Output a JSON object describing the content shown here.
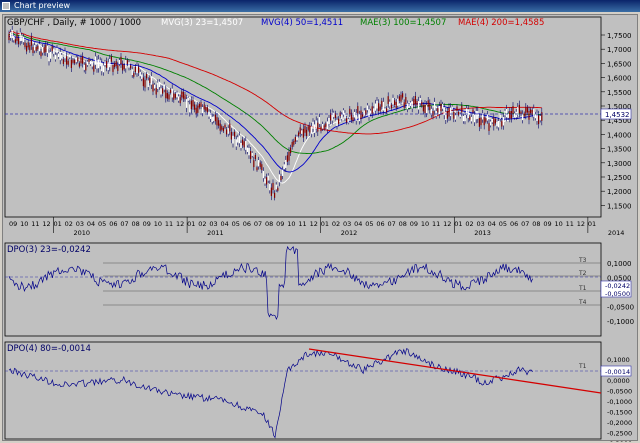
{
  "window": {
    "title": "Chart preview"
  },
  "legend": {
    "symbol": "GBP/CHF , Daily, # 1000 / 1000",
    "ma1": "MVG(3) 23=1,4507",
    "ma2": "MVG(4) 50=1,4511",
    "ma3": "MAE(3) 100=1,4507",
    "ma4": "MAE(4) 200=1,4585"
  },
  "colors": {
    "ma1": "#ffffff",
    "ma2": "#0000cc",
    "ma3": "#008000",
    "ma4": "#d40000",
    "price": "#000066",
    "trendline": "#d40000"
  },
  "price_axis": [
    "1,7500",
    "1,7000",
    "1,6500",
    "1,6000",
    "1,5500",
    "1,5000",
    "1,4500",
    "1,4000",
    "1,3500",
    "1,3000",
    "1,2500",
    "1,2000",
    "1,1500"
  ],
  "price_marker": "1,4532",
  "x_months": [
    "09",
    "10",
    "11",
    "12",
    "01",
    "02",
    "03",
    "04",
    "05",
    "06",
    "07",
    "08",
    "09",
    "10",
    "11",
    "12",
    "01",
    "02",
    "03",
    "04",
    "05",
    "06",
    "07",
    "08",
    "09",
    "10",
    "11",
    "12",
    "01",
    "02",
    "03",
    "04",
    "05",
    "06",
    "07",
    "08",
    "09",
    "10",
    "11",
    "12",
    "01",
    "02",
    "03",
    "04",
    "05",
    "06",
    "07",
    "08",
    "09",
    "10",
    "11",
    "12",
    "01"
  ],
  "x_years": [
    "2010",
    "2011",
    "2012",
    "2013",
    "2014"
  ],
  "dpo3": {
    "title": "DPO(3) 23=-0,0242",
    "axis": [
      "0,1000",
      "0,0500",
      "0,0000",
      "-0,0500",
      "-0,1000"
    ],
    "marker1": "-0,0242",
    "marker2": "-0,0500",
    "levels": [
      "T3",
      "T2",
      "T1",
      "T4"
    ]
  },
  "dpo4": {
    "title": "DPO(4) 80=-0,0014",
    "axis": [
      "0,1000",
      "0,0500",
      "0,0000",
      "-0,0500",
      "-0,1000",
      "-0,1500",
      "-0,2000",
      "-0,2500",
      "-0,3000"
    ],
    "marker1": "-0,0014",
    "levels": [
      "T1"
    ]
  }
}
